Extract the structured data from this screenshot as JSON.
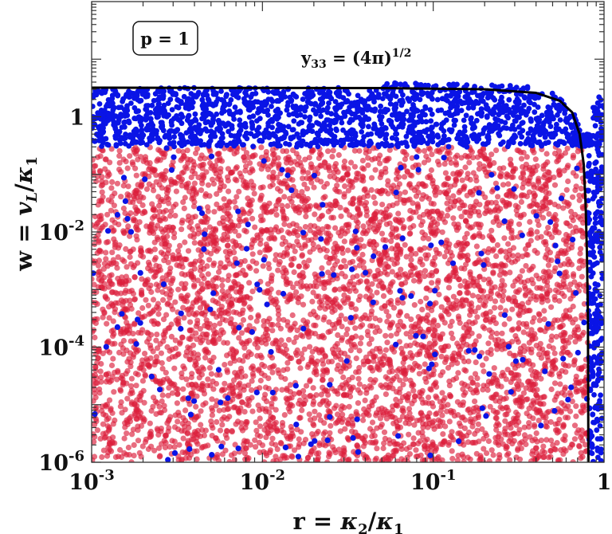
{
  "chart_data": {
    "type": "scatter",
    "title": "",
    "xlabel": {
      "lead": "r = ",
      "num": "κ",
      "num_sub": "2",
      "sep": "/",
      "den": "κ",
      "den_sub": "1"
    },
    "ylabel": {
      "lead": "w = ",
      "num": "v",
      "num_sub": "L",
      "sep": "/",
      "den": "κ",
      "den_sub": "1"
    },
    "xscale": "log",
    "yscale": "log",
    "xlim": [
      0.001,
      1
    ],
    "ylim": [
      1e-06,
      100
    ],
    "x_ticks": [
      {
        "value": 0.001,
        "base": "10",
        "exp": "-3"
      },
      {
        "value": 0.01,
        "base": "10",
        "exp": "-2"
      },
      {
        "value": 0.1,
        "base": "10",
        "exp": "-1"
      },
      {
        "value": 1,
        "base": "1",
        "exp": ""
      }
    ],
    "y_ticks": [
      {
        "value": 1e-06,
        "base": "10",
        "exp": "-6"
      },
      {
        "value": 0.0001,
        "base": "10",
        "exp": "-4"
      },
      {
        "value": 0.01,
        "base": "10",
        "exp": "-2"
      },
      {
        "value": 1,
        "base": "1",
        "exp": ""
      }
    ],
    "grid": false,
    "legend_box": {
      "text": "p = 1",
      "placement": "top-left"
    },
    "annotation": {
      "base": "y",
      "sub": "33",
      "rest": " = (4π)",
      "sup": "1/2",
      "anchor": [
        0.18,
        20
      ]
    },
    "series": [
      {
        "kind": "dense-scatter",
        "color": "#dc1e3c",
        "opacity": 0.65,
        "region": {
          "x_range": [
            0.001,
            0.85
          ],
          "y_range": [
            1e-06,
            0.3
          ]
        }
      },
      {
        "kind": "dense-scatter",
        "color": "#0a14e6",
        "region": {
          "x_range": [
            0.001,
            1
          ],
          "y_range": [
            0.3,
            3.2
          ]
        }
      },
      {
        "kind": "scatter",
        "color": "#0a14e6",
        "region": {
          "x_range": [
            0.001,
            0.85
          ],
          "y_range": [
            1e-06,
            0.3
          ]
        }
      },
      {
        "kind": "dense-scatter",
        "color": "#0a14e6",
        "region": {
          "x_range": [
            0.85,
            1
          ],
          "y_range": [
            1e-06,
            0.3
          ]
        }
      }
    ],
    "boundary_curve": {
      "color": "#000000",
      "label": "y33 = (4π)^1/2",
      "points": [
        [
          0.001,
          3.2
        ],
        [
          0.05,
          3.15
        ],
        [
          0.2,
          3.0
        ],
        [
          0.4,
          2.6
        ],
        [
          0.55,
          1.9
        ],
        [
          0.65,
          1.2
        ],
        [
          0.72,
          0.5
        ],
        [
          0.76,
          0.15
        ],
        [
          0.78,
          0.03
        ],
        [
          0.795,
          0.004
        ],
        [
          0.805,
          0.0003
        ],
        [
          0.81,
          1e-06
        ]
      ]
    }
  }
}
